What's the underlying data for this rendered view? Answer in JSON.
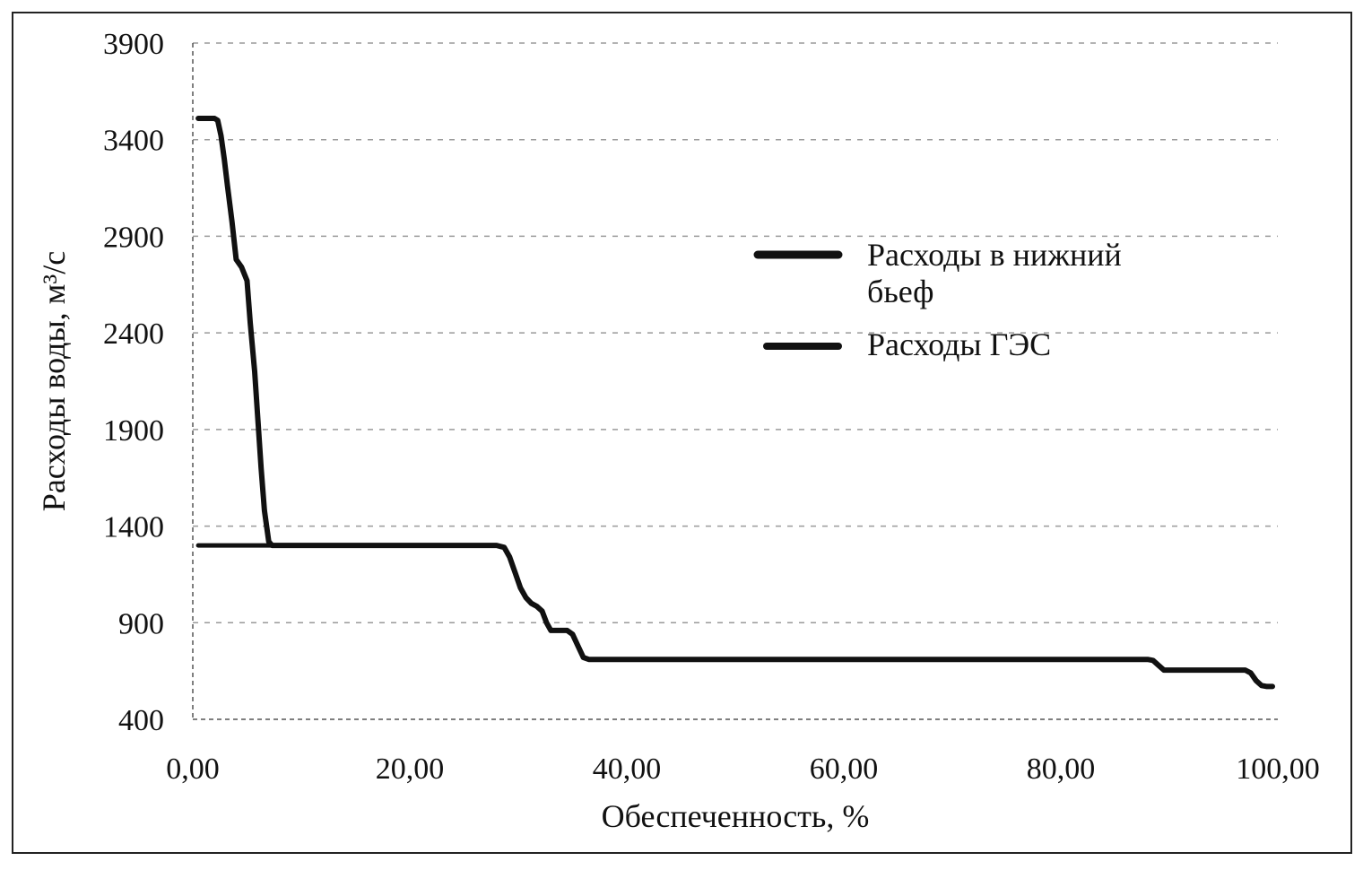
{
  "chart_data": {
    "type": "line",
    "title": "",
    "xlabel": "Обеспеченность, %",
    "ylabel": "Расходы воды, м³/с",
    "xlim": [
      0,
      100
    ],
    "ylim": [
      400,
      3900
    ],
    "x_ticks": [
      "0,00",
      "20,00",
      "40,00",
      "60,00",
      "80,00",
      "100,00"
    ],
    "y_ticks": [
      "400",
      "900",
      "1400",
      "1900",
      "2400",
      "2900",
      "3400",
      "3900"
    ],
    "grid": "horizontal-dashed",
    "legend_position": "right",
    "colors": {
      "line": "#111111",
      "grid": "#9a9a9a",
      "frame": "#222222"
    },
    "series": [
      {
        "name": "Расходы в нижний бьеф",
        "legend_lines": [
          "Расходы в нижний",
          "бьеф"
        ],
        "x": [
          0.5,
          1.5,
          2.0,
          2.3,
          2.6,
          2.9,
          3.2,
          3.6,
          4.0,
          4.5,
          5.0,
          5.3,
          5.7,
          6.0,
          6.3,
          6.6,
          7.0,
          7.3,
          8.0,
          15.0,
          20.0,
          25.0,
          27.0,
          28.0,
          28.7,
          29.2,
          29.7,
          30.2,
          30.7,
          31.2,
          31.7,
          32.2,
          32.6,
          33.0,
          33.5,
          34.0,
          34.5,
          35.0,
          35.5,
          36.0,
          36.5,
          37.0,
          40.0,
          50.0,
          60.0,
          70.0,
          80.0,
          88.0,
          88.5,
          89.0,
          89.5,
          90.0,
          92.0,
          95.0,
          97.0,
          97.5,
          98.0,
          98.5,
          99.0,
          99.5
        ],
        "y": [
          3510,
          3510,
          3510,
          3500,
          3420,
          3300,
          3160,
          2980,
          2780,
          2740,
          2670,
          2450,
          2200,
          1950,
          1700,
          1480,
          1320,
          1300,
          1300,
          1300,
          1300,
          1300,
          1300,
          1300,
          1290,
          1240,
          1160,
          1080,
          1030,
          1000,
          985,
          960,
          900,
          860,
          860,
          860,
          860,
          840,
          780,
          720,
          710,
          710,
          710,
          710,
          710,
          710,
          710,
          710,
          705,
          680,
          655,
          655,
          655,
          655,
          655,
          640,
          600,
          575,
          570,
          570
        ]
      },
      {
        "name": "Расходы ГЭС",
        "legend_lines": [
          "Расходы ГЭС"
        ],
        "x": [
          0.5,
          7.0,
          15.0,
          20.0,
          25.0,
          27.0,
          28.0,
          28.7,
          29.2,
          29.7,
          30.2,
          30.7,
          31.2,
          31.7,
          32.2,
          32.6,
          33.0,
          33.5,
          34.0,
          34.5,
          35.0,
          35.5,
          36.0,
          36.5,
          37.0,
          40.0,
          50.0,
          60.0,
          70.0,
          80.0,
          88.0,
          88.5,
          89.0,
          89.5,
          90.0,
          92.0,
          95.0,
          97.0,
          97.5,
          98.0,
          98.5,
          99.0,
          99.5
        ],
        "y": [
          1300,
          1300,
          1300,
          1300,
          1300,
          1300,
          1300,
          1290,
          1240,
          1160,
          1080,
          1030,
          1000,
          985,
          960,
          900,
          860,
          860,
          860,
          860,
          840,
          780,
          720,
          710,
          710,
          710,
          710,
          710,
          710,
          710,
          710,
          705,
          680,
          655,
          655,
          655,
          655,
          655,
          640,
          600,
          575,
          570,
          570
        ]
      }
    ]
  }
}
